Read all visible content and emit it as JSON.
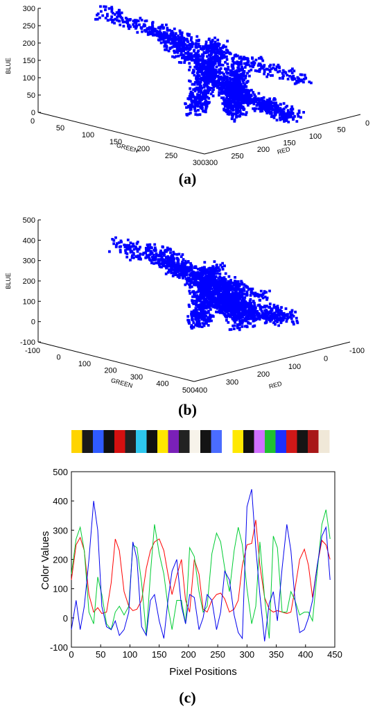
{
  "captions": {
    "a": "(a)",
    "b": "(b)",
    "c": "(c)"
  },
  "chart_data": [
    {
      "type": "scatter",
      "panel": "a",
      "color": "#0000ff",
      "zlabel": "BLUE",
      "xlabel": "GREEN",
      "ylabel": "RED",
      "z_ticks": [
        "0",
        "50",
        "100",
        "150",
        "200",
        "250",
        "300"
      ],
      "green_ticks": [
        "0",
        "50",
        "100",
        "150",
        "200",
        "250",
        "300"
      ],
      "red_ticks": [
        "300",
        "250",
        "200",
        "150",
        "100",
        "50",
        "0"
      ],
      "xlim": [
        0,
        300
      ],
      "ylim": [
        0,
        300
      ],
      "zlim": [
        0,
        300
      ],
      "arms": [
        {
          "from": [
            170,
            190,
            60
          ],
          "to": [
            160,
            60,
            280
          ]
        },
        {
          "from": [
            230,
            270,
            80
          ],
          "to": [
            60,
            60,
            290
          ]
        },
        {
          "from": [
            170,
            200,
            120
          ],
          "to": [
            230,
            130,
            40
          ]
        },
        {
          "from": [
            140,
            200,
            60
          ],
          "to": [
            270,
            200,
            20
          ]
        },
        {
          "from": [
            160,
            130,
            20
          ],
          "to": [
            160,
            170,
            200
          ]
        }
      ]
    },
    {
      "type": "scatter",
      "panel": "b",
      "color": "#0000ff",
      "zlabel": "BLUE",
      "xlabel": "GREEN",
      "ylabel": "RED",
      "z_ticks": [
        "-100",
        "0",
        "100",
        "200",
        "300",
        "400",
        "500"
      ],
      "green_ticks": [
        "-100",
        "0",
        "100",
        "200",
        "300",
        "400",
        "500"
      ],
      "red_ticks": [
        "400",
        "300",
        "200",
        "100",
        "0",
        "-100"
      ],
      "xlim": [
        -100,
        500
      ],
      "ylim": [
        -100,
        400
      ],
      "zlim": [
        -100,
        500
      ],
      "arms": [
        {
          "from": [
            200,
            250,
            50
          ],
          "to": [
            180,
            50,
            380
          ]
        },
        {
          "from": [
            300,
            300,
            80
          ],
          "to": [
            40,
            40,
            380
          ]
        },
        {
          "from": [
            200,
            250,
            150
          ],
          "to": [
            330,
            190,
            20
          ]
        },
        {
          "from": [
            160,
            250,
            40
          ],
          "to": [
            380,
            300,
            20
          ]
        },
        {
          "from": [
            190,
            170,
            -20
          ],
          "to": [
            190,
            210,
            250
          ]
        }
      ]
    },
    {
      "type": "line",
      "panel": "c",
      "xlabel": "Pixel Positions",
      "ylabel": "Color Values",
      "xlim": [
        0,
        450
      ],
      "ylim": [
        -100,
        500
      ],
      "x_ticks": [
        "0",
        "50",
        "100",
        "150",
        "200",
        "250",
        "300",
        "350",
        "400",
        "450"
      ],
      "y_ticks": [
        "-100",
        "0",
        "100",
        "200",
        "300",
        "400",
        "500"
      ],
      "color_strip": [
        "#ffd400",
        "#1a1a1a",
        "#2f5bff",
        "#111111",
        "#d41010",
        "#222222",
        "#2ec7ee",
        "#111111",
        "#ffe600",
        "#7a20b8",
        "#222222",
        "#f7f3ea",
        "#141414",
        "#4a6cff",
        "#ffffff",
        "#ffe800",
        "#111111",
        "#d070ff",
        "#20c030",
        "#1c2fff",
        "#d01818",
        "#151515",
        "#a81818",
        "#f0e8d8"
      ],
      "series": [
        {
          "color": "#ff0000",
          "x": [
            0,
            8,
            15,
            22,
            30,
            38,
            45,
            52,
            60,
            68,
            75,
            82,
            90,
            98,
            105,
            112,
            120,
            128,
            135,
            142,
            150,
            158,
            165,
            172,
            180,
            188,
            195,
            202,
            210,
            218,
            225,
            232,
            240,
            248,
            255,
            262,
            270,
            278,
            285,
            292,
            300,
            308,
            315,
            322,
            330,
            338,
            345,
            352,
            360,
            368,
            375,
            382,
            390,
            398,
            405,
            412,
            420,
            428,
            435,
            442
          ],
          "y": [
            130,
            250,
            275,
            230,
            80,
            20,
            35,
            15,
            20,
            120,
            270,
            230,
            90,
            40,
            25,
            30,
            60,
            170,
            230,
            260,
            270,
            230,
            150,
            80,
            145,
            200,
            60,
            20,
            200,
            150,
            30,
            20,
            60,
            80,
            85,
            65,
            20,
            30,
            60,
            180,
            250,
            255,
            335,
            180,
            70,
            30,
            20,
            25,
            20,
            15,
            20,
            100,
            200,
            235,
            180,
            70,
            180,
            265,
            250,
            200
          ]
        },
        {
          "color": "#00cc33",
          "x": [
            0,
            8,
            15,
            22,
            30,
            38,
            45,
            52,
            60,
            68,
            75,
            82,
            90,
            98,
            105,
            112,
            120,
            128,
            135,
            142,
            150,
            158,
            165,
            172,
            180,
            188,
            195,
            202,
            210,
            218,
            225,
            232,
            240,
            248,
            255,
            262,
            270,
            278,
            285,
            292,
            300,
            308,
            315,
            322,
            330,
            338,
            345,
            352,
            360,
            368,
            375,
            382,
            390,
            398,
            405,
            412,
            420,
            428,
            435,
            442
          ],
          "y": [
            150,
            270,
            310,
            230,
            20,
            -20,
            140,
            80,
            -20,
            -40,
            20,
            40,
            10,
            40,
            250,
            240,
            120,
            -60,
            150,
            320,
            220,
            150,
            40,
            -40,
            60,
            60,
            -20,
            240,
            210,
            90,
            20,
            40,
            220,
            290,
            260,
            170,
            90,
            230,
            310,
            250,
            100,
            -20,
            40,
            260,
            70,
            -70,
            280,
            240,
            20,
            20,
            90,
            60,
            10,
            20,
            20,
            -10,
            160,
            320,
            370,
            270
          ]
        },
        {
          "color": "#0000ee",
          "x": [
            0,
            8,
            15,
            22,
            30,
            38,
            45,
            52,
            60,
            68,
            75,
            82,
            90,
            98,
            105,
            112,
            120,
            128,
            135,
            142,
            150,
            158,
            165,
            172,
            180,
            188,
            195,
            202,
            210,
            218,
            225,
            232,
            240,
            248,
            255,
            262,
            270,
            278,
            285,
            292,
            300,
            308,
            315,
            322,
            330,
            338,
            345,
            352,
            360,
            368,
            375,
            382,
            390,
            398,
            405,
            412,
            420,
            428,
            435,
            442
          ],
          "y": [
            -40,
            60,
            -40,
            40,
            200,
            400,
            300,
            40,
            -30,
            -40,
            -10,
            -60,
            -40,
            20,
            260,
            200,
            -30,
            -60,
            60,
            80,
            -10,
            -70,
            60,
            160,
            200,
            40,
            -20,
            80,
            70,
            -40,
            0,
            80,
            60,
            -40,
            20,
            160,
            130,
            10,
            -50,
            -70,
            380,
            440,
            240,
            80,
            -80,
            50,
            90,
            -10,
            170,
            320,
            230,
            60,
            -50,
            -40,
            0,
            60,
            180,
            280,
            310,
            130
          ]
        }
      ]
    }
  ]
}
